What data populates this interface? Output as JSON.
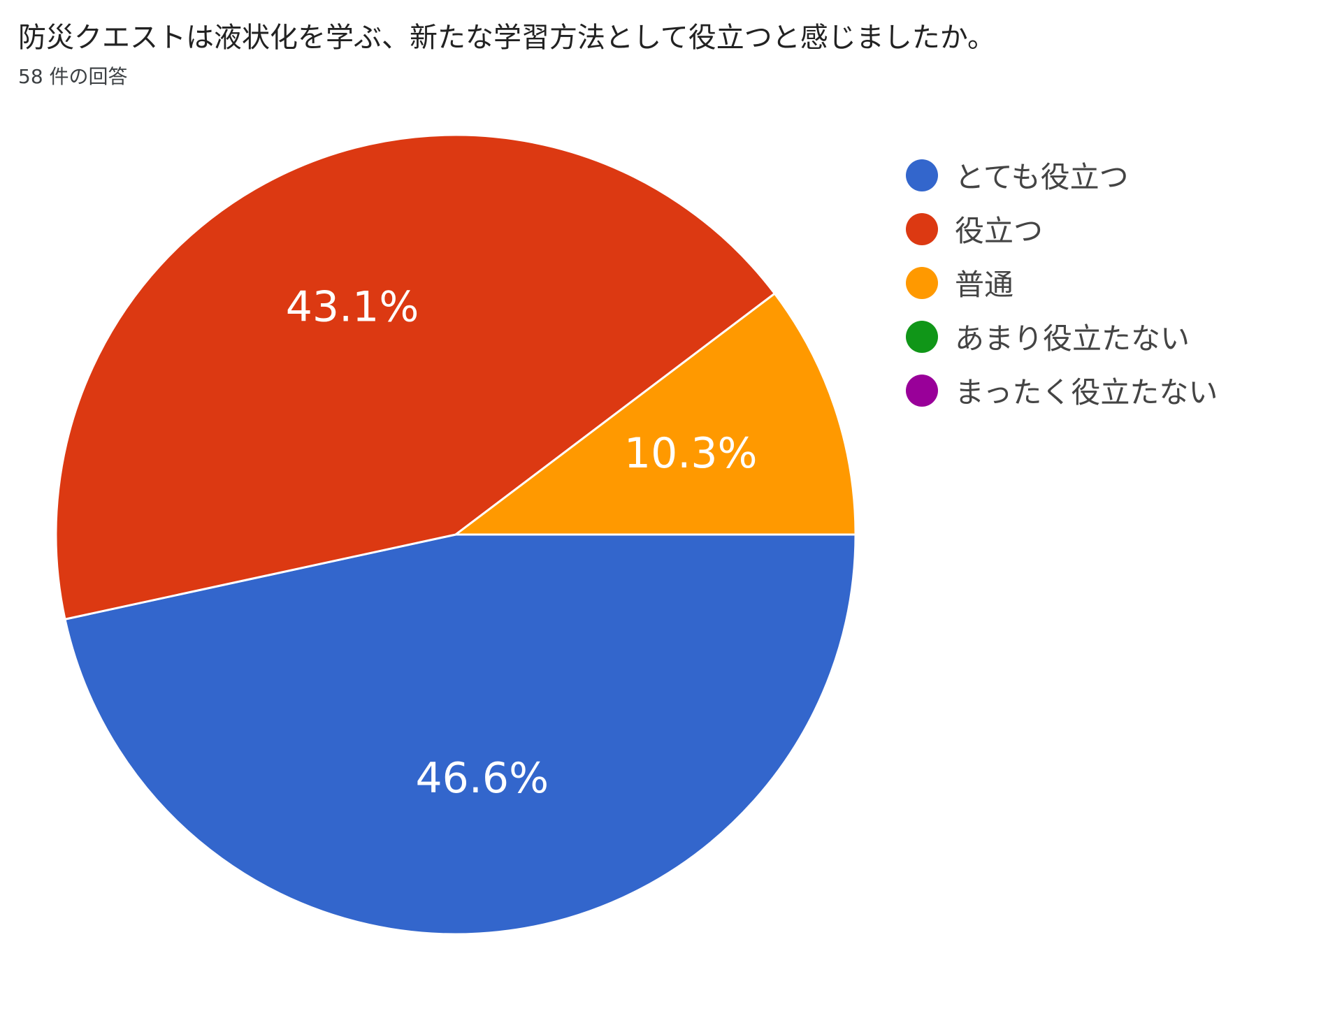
{
  "question": {
    "title": "防災クエストは液状化を学ぶ、新たな学習方法として役立つと感じましたか。",
    "response_count": "58 件の回答"
  },
  "chart_data": {
    "type": "pie",
    "title": "防災クエストは液状化を学ぶ、新たな学習方法として役立つと感じましたか。",
    "legend_position": "right",
    "slices": [
      {
        "label": "とても役立つ",
        "value": 46.6,
        "value_label": "46.6%",
        "color": "#3366cc"
      },
      {
        "label": "役立つ",
        "value": 43.1,
        "value_label": "43.1%",
        "color": "#dc3912"
      },
      {
        "label": "普通",
        "value": 10.3,
        "value_label": "10.3%",
        "color": "#ff9900"
      },
      {
        "label": "あまり役立たない",
        "value": 0,
        "value_label": "",
        "color": "#109618"
      },
      {
        "label": "まったく役立たない",
        "value": 0,
        "value_label": "",
        "color": "#990099"
      }
    ]
  }
}
